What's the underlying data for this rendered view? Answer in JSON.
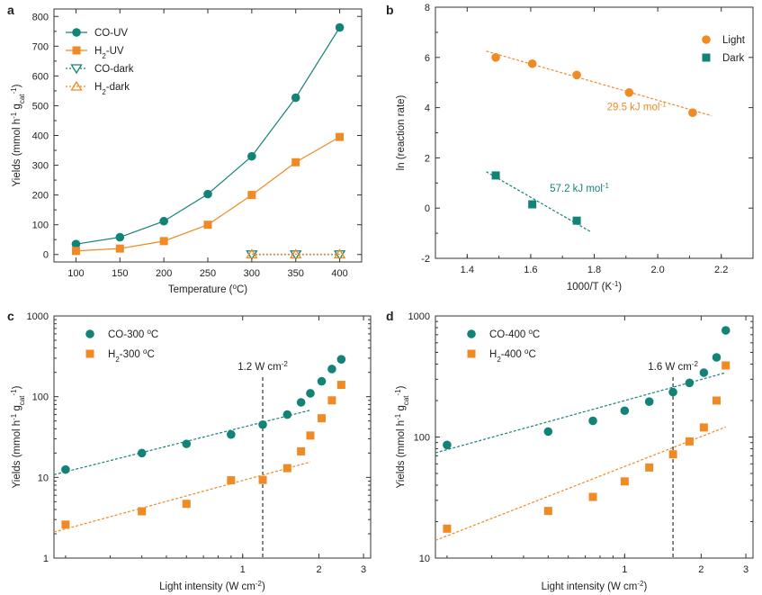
{
  "colors": {
    "teal": "#138378",
    "orange": "#ef8a25",
    "axis": "#333333"
  },
  "chart_data": [
    {
      "panel": "a",
      "type": "line",
      "xlabel_parts": [
        "Temperature (",
        "o",
        "C)"
      ],
      "ylabel_parts": [
        "Yields (mmol h",
        "-1",
        " g",
        "cat",
        "-1",
        ")"
      ],
      "xlim": [
        75,
        425
      ],
      "ylim": [
        -25,
        825
      ],
      "xticks": [
        100,
        150,
        200,
        250,
        300,
        350,
        400
      ],
      "yticks": [
        0,
        100,
        200,
        300,
        400,
        500,
        600,
        700,
        800
      ],
      "legend_position": "top-left",
      "series": [
        {
          "name": "CO-UV",
          "label_parts": [
            "CO-UV"
          ],
          "color_key": "teal",
          "marker": "circle",
          "line": "solid",
          "x": [
            100,
            150,
            200,
            250,
            300,
            350,
            400
          ],
          "values": [
            35,
            58,
            112,
            203,
            330,
            527,
            763
          ]
        },
        {
          "name": "H2-UV",
          "label_parts": [
            "H",
            "2",
            "-UV"
          ],
          "color_key": "orange",
          "marker": "square",
          "line": "solid",
          "x": [
            100,
            150,
            200,
            250,
            300,
            350,
            400
          ],
          "values": [
            12,
            20,
            45,
            100,
            200,
            310,
            395
          ]
        },
        {
          "name": "CO-dark",
          "label_parts": [
            "CO-dark"
          ],
          "color_key": "teal",
          "marker": "triangle-down-open",
          "line": "dotted",
          "x": [
            300,
            350,
            400
          ],
          "values": [
            0,
            0,
            0
          ]
        },
        {
          "name": "H2-dark",
          "label_parts": [
            "H",
            "2",
            "-dark"
          ],
          "color_key": "orange",
          "marker": "triangle-up-open",
          "line": "dotted",
          "x": [
            300,
            350,
            400
          ],
          "values": [
            1,
            1,
            1
          ]
        }
      ]
    },
    {
      "panel": "b",
      "type": "scatter",
      "xlabel_parts": [
        "1000/T (K",
        "-1",
        ")"
      ],
      "ylabel_parts": [
        "ln (reaction rate)"
      ],
      "xlim": [
        1.3,
        2.3
      ],
      "ylim": [
        -2,
        8
      ],
      "xticks": [
        1.4,
        1.6,
        1.8,
        2.0,
        2.2
      ],
      "yticks": [
        -2,
        0,
        2,
        4,
        6,
        8
      ],
      "legend_position": "top-right",
      "series": [
        {
          "name": "Light",
          "color_key": "orange",
          "marker": "circle",
          "x": [
            1.49,
            1.605,
            1.745,
            1.91,
            2.11
          ],
          "values": [
            6.0,
            5.75,
            5.3,
            4.6,
            3.8
          ],
          "fit": {
            "x": [
              1.46,
              2.17
            ],
            "values": [
              6.25,
              3.68
            ]
          }
        },
        {
          "name": "Dark",
          "color_key": "teal",
          "marker": "square",
          "x": [
            1.49,
            1.605,
            1.745
          ],
          "values": [
            1.3,
            0.15,
            -0.5
          ],
          "fit": {
            "x": [
              1.46,
              1.79
            ],
            "values": [
              1.45,
              -0.95
            ]
          }
        }
      ],
      "annotations": [
        {
          "text_parts": [
            "29.5 kJ mol",
            "-1"
          ],
          "color_key": "orange",
          "x": 1.84,
          "y": 3.9
        },
        {
          "text_parts": [
            "57.2 kJ mol",
            "-1"
          ],
          "color_key": "teal",
          "x": 1.66,
          "y": 0.65
        }
      ]
    },
    {
      "panel": "c",
      "type": "scatter",
      "xscale": "log",
      "yscale": "log",
      "xlabel_parts": [
        "Light intensity (W cm",
        "-2",
        ")"
      ],
      "ylabel_parts": [
        "Yields (mmol h",
        "-1",
        " g",
        "cat",
        "-1",
        ")"
      ],
      "xlim": [
        0.18,
        3.2
      ],
      "ylim": [
        1,
        1000
      ],
      "xticks": [
        1,
        2,
        3
      ],
      "yticks": [
        1,
        10,
        100,
        1000
      ],
      "legend_position": "top-left",
      "series": [
        {
          "name": "CO-300 °C",
          "label_parts": [
            "CO-300 ",
            "o",
            "C"
          ],
          "color_key": "teal",
          "marker": "circle",
          "x": [
            0.2,
            0.4,
            0.6,
            0.9,
            1.2,
            1.5,
            1.7,
            1.85,
            2.05,
            2.25,
            2.45
          ],
          "values": [
            12.5,
            20,
            26,
            34,
            45,
            60,
            85,
            110,
            155,
            220,
            290
          ],
          "fit": {
            "x": [
              0.18,
              1.85
            ],
            "values": [
              10.8,
              68
            ]
          }
        },
        {
          "name": "H2-300 °C",
          "label_parts": [
            "H",
            "2",
            "-300 ",
            "o",
            "C"
          ],
          "color_key": "orange",
          "marker": "square",
          "x": [
            0.2,
            0.4,
            0.6,
            0.9,
            1.2,
            1.5,
            1.7,
            1.85,
            2.05,
            2.25,
            2.45
          ],
          "values": [
            2.6,
            3.8,
            4.7,
            9.2,
            9.3,
            13,
            21,
            33,
            54,
            90,
            140
          ],
          "fit": {
            "x": [
              0.18,
              1.85
            ],
            "values": [
              2.1,
              15.5
            ]
          }
        }
      ],
      "reference_line": {
        "x": 1.2,
        "label_parts": [
          "1.2 W cm",
          "-2"
        ]
      }
    },
    {
      "panel": "d",
      "type": "scatter",
      "xscale": "log",
      "yscale": "log",
      "xlabel_parts": [
        "Light intensity (W cm",
        "-2",
        ")"
      ],
      "ylabel_parts": [
        "Yields (mmol h",
        "-1",
        " g",
        "cat",
        "-1",
        ")"
      ],
      "xlim": [
        0.18,
        3.2
      ],
      "ylim": [
        10,
        1000
      ],
      "xticks": [
        1,
        2,
        3
      ],
      "yticks": [
        10,
        100,
        1000
      ],
      "legend_position": "top-left",
      "series": [
        {
          "name": "CO-400 °C",
          "label_parts": [
            "CO-400 ",
            "o",
            "C"
          ],
          "color_key": "teal",
          "marker": "circle",
          "x": [
            0.2,
            0.5,
            0.75,
            1.0,
            1.25,
            1.55,
            1.8,
            2.05,
            2.3,
            2.5
          ],
          "values": [
            86,
            111,
            136,
            165,
            196,
            235,
            280,
            340,
            455,
            760
          ],
          "fit": {
            "x": [
              0.18,
              2.5
            ],
            "values": [
              74,
              340
            ]
          }
        },
        {
          "name": "H2-400 °C",
          "label_parts": [
            "H",
            "2",
            "-400 ",
            "o",
            "C"
          ],
          "color_key": "orange",
          "marker": "square",
          "x": [
            0.2,
            0.5,
            0.75,
            1.0,
            1.25,
            1.55,
            1.8,
            2.05,
            2.3,
            2.5
          ],
          "values": [
            17.5,
            24.5,
            32,
            43,
            56,
            72,
            92,
            120,
            200,
            390
          ],
          "fit": {
            "x": [
              0.18,
              2.5
            ],
            "values": [
              14,
              121
            ]
          }
        }
      ],
      "reference_line": {
        "x": 1.55,
        "label_parts": [
          "1.6 W cm",
          "-2"
        ]
      }
    }
  ]
}
